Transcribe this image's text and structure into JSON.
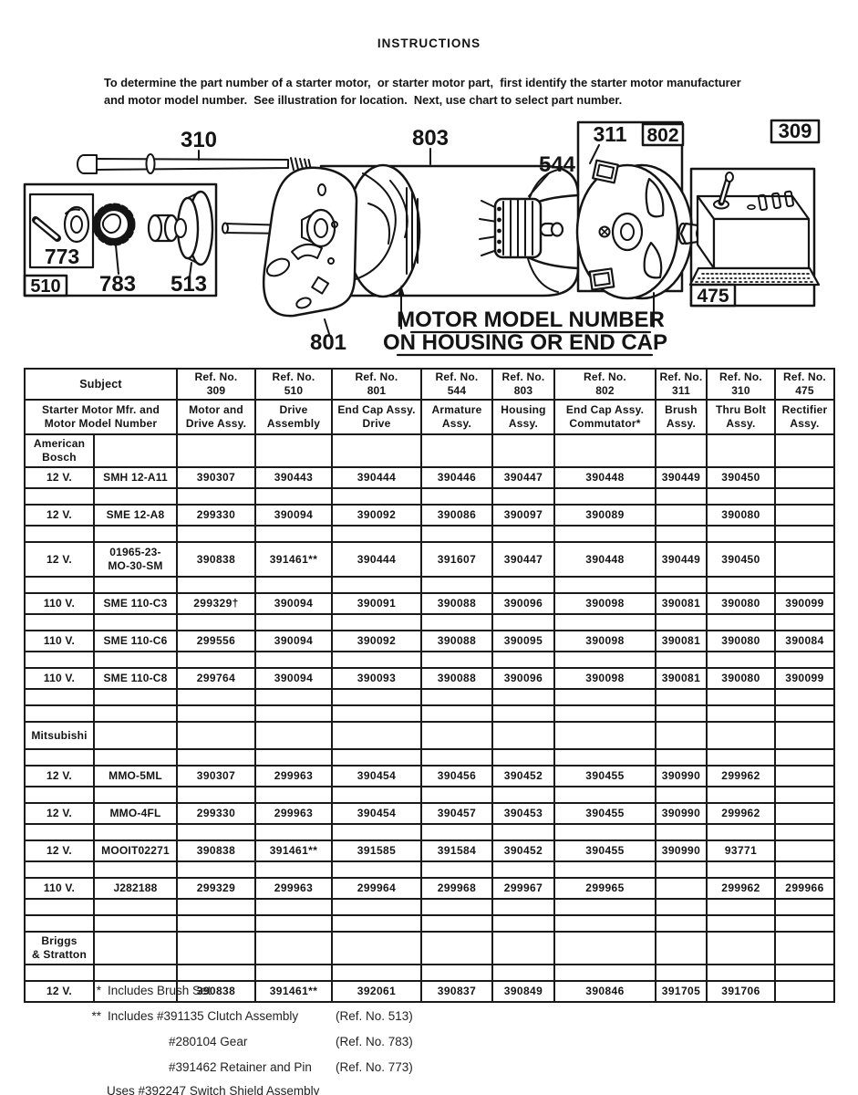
{
  "page": {
    "title": "INSTRUCTIONS",
    "instructions_line1": "To determine the part number of a starter motor,  or starter motor part,  first identify the starter motor manufacturer",
    "instructions_line2": "and motor model number.  See illustration for location.  Next, use chart to select part number."
  },
  "diagram": {
    "labels": {
      "thru_bolt": "310",
      "retainer_pin": "773",
      "gear": "783",
      "clutch": "513",
      "drive_box": "510",
      "end_cap_drive": "801",
      "housing": "803",
      "armature": "544",
      "brush": "311",
      "end_cap_comm": "802",
      "motor_drive": "309",
      "rectifier": "475"
    },
    "callout_line1": "MOTOR MODEL NUMBER",
    "callout_line2": "ON HOUSING OR END CAP"
  },
  "table": {
    "header": {
      "subject": "Subject",
      "subject_sub": "Starter Motor Mfr. and\nMotor Model Number",
      "columns": [
        {
          "ref": "Ref. No.",
          "num": "309",
          "desc": "Motor and\nDrive Assy."
        },
        {
          "ref": "Ref. No.",
          "num": "510",
          "desc": "Drive\nAssembly"
        },
        {
          "ref": "Ref. No.",
          "num": "801",
          "desc": "End Cap Assy.\nDrive"
        },
        {
          "ref": "Ref. No.",
          "num": "544",
          "desc": "Armature\nAssy."
        },
        {
          "ref": "Ref. No.",
          "num": "803",
          "desc": "Housing\nAssy."
        },
        {
          "ref": "Ref. No.",
          "num": "802",
          "desc": "End Cap Assy.\nCommutator*"
        },
        {
          "ref": "Ref. No.",
          "num": "311",
          "desc": "Brush\nAssy."
        },
        {
          "ref": "Ref. No.",
          "num": "310",
          "desc": "Thru Bolt\nAssy."
        },
        {
          "ref": "Ref. No.",
          "num": "475",
          "desc": "Rectifier\nAssy."
        }
      ]
    },
    "rows": [
      {
        "kind": "group",
        "label": "American\nBosch"
      },
      {
        "kind": "data",
        "voltage": "12 V.",
        "model": "SMH 12-A11",
        "parts": [
          "390307",
          "390443",
          "390444",
          "390446",
          "390447",
          "390448",
          "390449",
          "390450",
          ""
        ]
      },
      {
        "kind": "blank"
      },
      {
        "kind": "data",
        "voltage": "12 V.",
        "model": "SME 12-A8",
        "parts": [
          "299330",
          "390094",
          "390092",
          "390086",
          "390097",
          "390089",
          "",
          "390080",
          ""
        ]
      },
      {
        "kind": "blank"
      },
      {
        "kind": "data",
        "tall": true,
        "voltage": "12 V.",
        "model": "01965-23-\nMO-30-SM",
        "parts": [
          "390838",
          "391461**",
          "390444",
          "391607",
          "390447",
          "390448",
          "390449",
          "390450",
          ""
        ]
      },
      {
        "kind": "blank"
      },
      {
        "kind": "data",
        "voltage": "110 V.",
        "model": "SME 110-C3",
        "parts": [
          "299329†",
          "390094",
          "390091",
          "390088",
          "390096",
          "390098",
          "390081",
          "390080",
          "390099"
        ]
      },
      {
        "kind": "blank"
      },
      {
        "kind": "data",
        "voltage": "110 V.",
        "model": "SME 110-C6",
        "parts": [
          "299556",
          "390094",
          "390092",
          "390088",
          "390095",
          "390098",
          "390081",
          "390080",
          "390084"
        ]
      },
      {
        "kind": "blank"
      },
      {
        "kind": "data",
        "voltage": "110 V.",
        "model": "SME 110-C8",
        "parts": [
          "299764",
          "390094",
          "390093",
          "390088",
          "390096",
          "390098",
          "390081",
          "390080",
          "390099"
        ]
      },
      {
        "kind": "blank"
      },
      {
        "kind": "blank"
      },
      {
        "kind": "group",
        "label": "Mitsubishi"
      },
      {
        "kind": "blank"
      },
      {
        "kind": "data",
        "voltage": "12 V.",
        "model": "MMO-5ML",
        "parts": [
          "390307",
          "299963",
          "390454",
          "390456",
          "390452",
          "390455",
          "390990",
          "299962",
          ""
        ]
      },
      {
        "kind": "blank"
      },
      {
        "kind": "data",
        "voltage": "12 V.",
        "model": "MMO-4FL",
        "parts": [
          "299330",
          "299963",
          "390454",
          "390457",
          "390453",
          "390455",
          "390990",
          "299962",
          ""
        ]
      },
      {
        "kind": "blank"
      },
      {
        "kind": "data",
        "voltage": "12 V.",
        "model": "MOOIT02271",
        "parts": [
          "390838",
          "391461**",
          "391585",
          "391584",
          "390452",
          "390455",
          "390990",
          "93771",
          ""
        ]
      },
      {
        "kind": "blank"
      },
      {
        "kind": "data",
        "voltage": "110 V.",
        "model": "J282188",
        "parts": [
          "299329",
          "299963",
          "299964",
          "299968",
          "299967",
          "299965",
          "",
          "299962",
          "299966"
        ]
      },
      {
        "kind": "blank"
      },
      {
        "kind": "blank"
      },
      {
        "kind": "group",
        "label": "Briggs\n& Stratton"
      },
      {
        "kind": "blank"
      },
      {
        "kind": "data",
        "voltage": "12 V.",
        "model": "",
        "parts": [
          "390838",
          "391461**",
          "392061",
          "390837",
          "390849",
          "390846",
          "391705",
          "391706",
          ""
        ]
      }
    ]
  },
  "footnotes": [
    {
      "marker": "*",
      "text": "Includes Brush Set",
      "ref": ""
    },
    {
      "marker": "**",
      "text": "Includes #391135 Clutch Assembly",
      "ref": "(Ref. No. 513)"
    },
    {
      "marker": "",
      "text": "#280104 Gear",
      "ref": "(Ref. No. 783)"
    },
    {
      "marker": "",
      "text": "#391462 Retainer and Pin",
      "ref": "(Ref. No. 773)"
    },
    {
      "marker": "",
      "text": "Uses #392247 Switch Shield Assembly",
      "ref": ""
    }
  ]
}
